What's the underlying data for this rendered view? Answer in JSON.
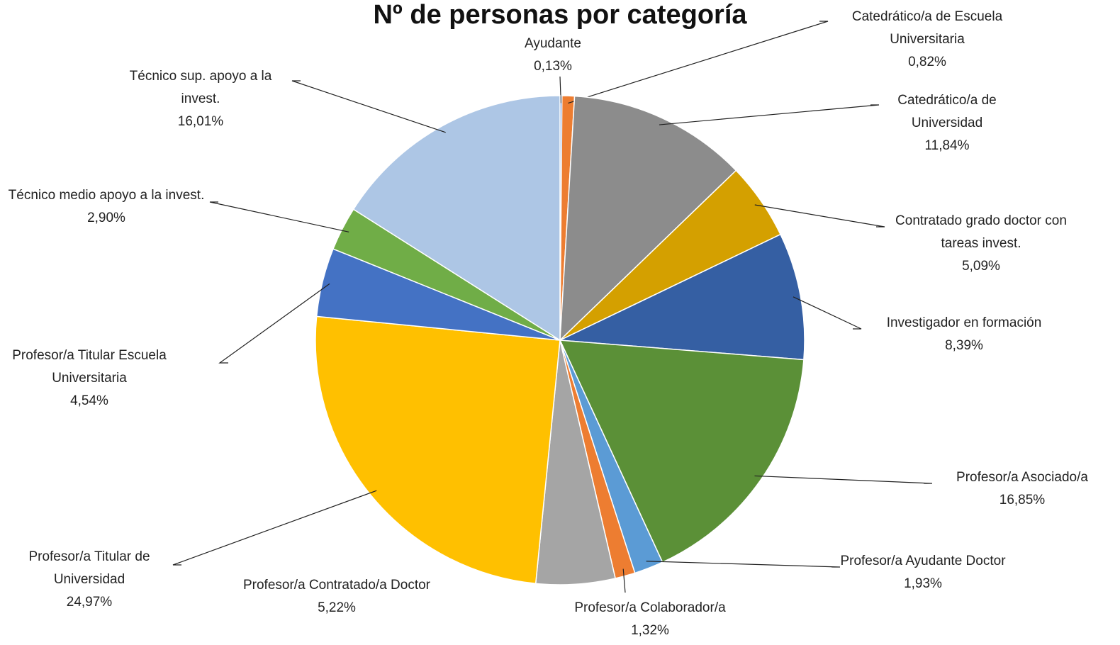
{
  "chart_data": {
    "type": "pie",
    "title": "Nº de personas por categoría",
    "categories": [
      "Ayudante",
      "Catedrático/a de Escuela Universitaria",
      "Catedrático/a de Universidad",
      "Contratado grado doctor con tareas invest.",
      "Investigador en formación",
      "Profesor/a Asociado/a",
      "Profesor/a Ayudante Doctor",
      "Profesor/a Colaborador/a",
      "Profesor/a Contratado/a Doctor",
      "Profesor/a Titular de Universidad",
      "Profesor/a Titular Escuela Universitaria",
      "Técnico medio apoyo a la invest.",
      "Técnico sup. apoyo a la invest."
    ],
    "values": [
      0.13,
      0.82,
      11.84,
      5.09,
      8.39,
      16.85,
      1.93,
      1.32,
      5.22,
      24.97,
      4.54,
      2.9,
      16.01
    ],
    "value_labels": [
      "0,13%",
      "0,82%",
      "11,84%",
      "5,09%",
      "8,39%",
      "16,85%",
      "1,93%",
      "1,32%",
      "5,22%",
      "24,97%",
      "4,54%",
      "2,90%",
      "16,01%"
    ],
    "colors": [
      "#4472c4",
      "#ed7d31",
      "#8c8c8c",
      "#d4a000",
      "#355fa3",
      "#5b9037",
      "#5b9bd5",
      "#ed7d31",
      "#a5a5a5",
      "#ffc000",
      "#4472c4",
      "#70ad47",
      "#adc6e5"
    ]
  }
}
